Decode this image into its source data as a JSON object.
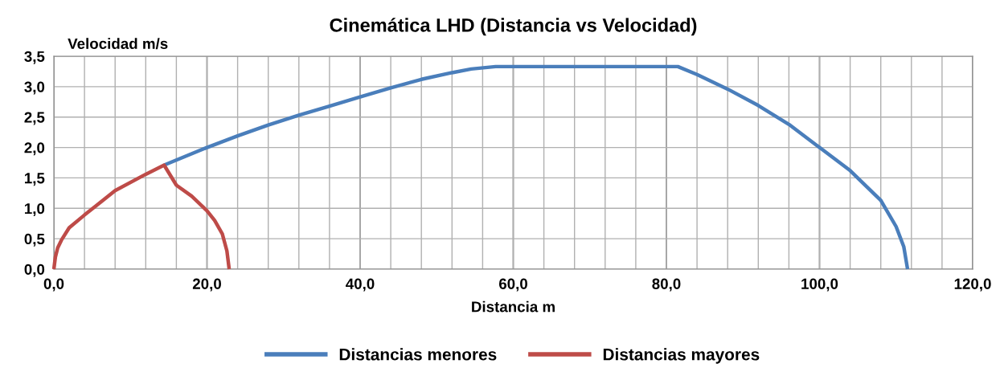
{
  "chart_data": {
    "type": "line",
    "title": "Cinemática LHD (Distancia vs Velocidad)",
    "xlabel": "Distancia m",
    "ylabel": "Velocidad m/s",
    "series": [
      {
        "name": "Distancias menores",
        "color": "#4a7ebb",
        "x": [
          14.4,
          20,
          24,
          28,
          32,
          36,
          40,
          44,
          48,
          52,
          54.5,
          57.7,
          81.5,
          84,
          88,
          92,
          96,
          100,
          104,
          108,
          110,
          111,
          111.5
        ],
        "values": [
          1.71,
          2.0,
          2.19,
          2.37,
          2.53,
          2.68,
          2.83,
          2.98,
          3.12,
          3.23,
          3.29,
          3.33,
          3.33,
          3.2,
          2.96,
          2.69,
          2.38,
          2.0,
          1.62,
          1.13,
          0.7,
          0.37,
          0.0
        ]
      },
      {
        "name": "Distancias mayores",
        "color": "#be4b48",
        "x": [
          0,
          0.2,
          0.5,
          1,
          2,
          4,
          8,
          12,
          14.4,
          16,
          18,
          20,
          21,
          22,
          22.6,
          22.9
        ],
        "values": [
          0,
          0.2,
          0.35,
          0.48,
          0.68,
          0.89,
          1.29,
          1.56,
          1.71,
          1.38,
          1.2,
          0.96,
          0.8,
          0.58,
          0.3,
          0.0
        ]
      }
    ],
    "xlim": [
      0,
      120
    ],
    "ylim": [
      0,
      3.5
    ],
    "xticks": [
      {
        "value": 0,
        "label": "0,0"
      },
      {
        "value": 4,
        "label": null
      },
      {
        "value": 8,
        "label": null
      },
      {
        "value": 12,
        "label": null
      },
      {
        "value": 16,
        "label": null
      },
      {
        "value": 20,
        "label": "20,0"
      },
      {
        "value": 24,
        "label": null
      },
      {
        "value": 28,
        "label": null
      },
      {
        "value": 32,
        "label": null
      },
      {
        "value": 36,
        "label": null
      },
      {
        "value": 40,
        "label": "40,0"
      },
      {
        "value": 44,
        "label": null
      },
      {
        "value": 48,
        "label": null
      },
      {
        "value": 52,
        "label": null
      },
      {
        "value": 56,
        "label": null
      },
      {
        "value": 60,
        "label": "60,0"
      },
      {
        "value": 64,
        "label": null
      },
      {
        "value": 68,
        "label": null
      },
      {
        "value": 72,
        "label": null
      },
      {
        "value": 76,
        "label": null
      },
      {
        "value": 80,
        "label": "80,0"
      },
      {
        "value": 84,
        "label": null
      },
      {
        "value": 88,
        "label": null
      },
      {
        "value": 92,
        "label": null
      },
      {
        "value": 96,
        "label": null
      },
      {
        "value": 100,
        "label": "100,0"
      },
      {
        "value": 104,
        "label": null
      },
      {
        "value": 108,
        "label": null
      },
      {
        "value": 112,
        "label": null
      },
      {
        "value": 116,
        "label": null
      },
      {
        "value": 120,
        "label": "120,0"
      }
    ],
    "yticks": [
      {
        "value": 0,
        "label": "0,0"
      },
      {
        "value": 0.5,
        "label": "0,5"
      },
      {
        "value": 1,
        "label": "1,0"
      },
      {
        "value": 1.5,
        "label": "1,5"
      },
      {
        "value": 2,
        "label": "2,0"
      },
      {
        "value": 2.5,
        "label": "2,5"
      },
      {
        "value": 3,
        "label": "3,0"
      },
      {
        "value": 3.5,
        "label": "3,5"
      }
    ],
    "grid": true,
    "legend": "bottom",
    "marker": "none",
    "line_style": "solid"
  }
}
